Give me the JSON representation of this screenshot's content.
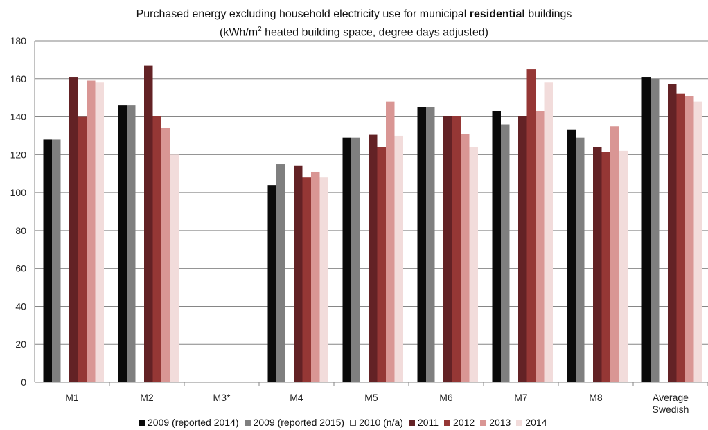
{
  "chart_data": {
    "type": "bar",
    "title_pre": "Purchased energy excluding household electricity use for municipal ",
    "title_bold": "residential",
    "title_post": " buildings",
    "subtitle_pre": "(kWh/m",
    "subtitle_sup": "2",
    "subtitle_post": " heated building space, degree days adjusted)",
    "categories": [
      "M1",
      "M2",
      "M3*",
      "M4",
      "M5",
      "M6",
      "M7",
      "M8",
      "Average Swedish municipality"
    ],
    "ylim": [
      0,
      180
    ],
    "yticks": [
      0,
      20,
      40,
      60,
      80,
      100,
      120,
      140,
      160,
      180
    ],
    "grid": true,
    "legend_position": "bottom",
    "series": [
      {
        "name": "2009 (reported 2014)",
        "color": "#0a0a0a",
        "values": [
          128,
          146,
          null,
          104,
          129,
          145,
          143,
          133,
          161
        ]
      },
      {
        "name": "2009 (reported 2015)",
        "color": "#7f7f7f",
        "values": [
          128,
          146,
          null,
          115,
          129,
          145,
          136,
          129,
          160
        ]
      },
      {
        "name": "2010 (n/a)",
        "color": "#ffffff",
        "values": [
          null,
          null,
          null,
          null,
          null,
          null,
          null,
          null,
          null
        ]
      },
      {
        "name": "2011",
        "color": "#632225",
        "values": [
          161,
          167,
          null,
          114,
          130.5,
          140.5,
          140.5,
          124,
          157
        ]
      },
      {
        "name": "2012",
        "color": "#953735",
        "values": [
          140,
          140.5,
          null,
          108,
          124,
          140.5,
          165,
          121.5,
          152
        ]
      },
      {
        "name": "2013",
        "color": "#d99694",
        "values": [
          159,
          134,
          null,
          111,
          148,
          131,
          143,
          135,
          151
        ]
      },
      {
        "name": "2014",
        "color": "#f2dcdb",
        "values": [
          158,
          120,
          null,
          108,
          130,
          124,
          158,
          122,
          148
        ]
      }
    ]
  }
}
